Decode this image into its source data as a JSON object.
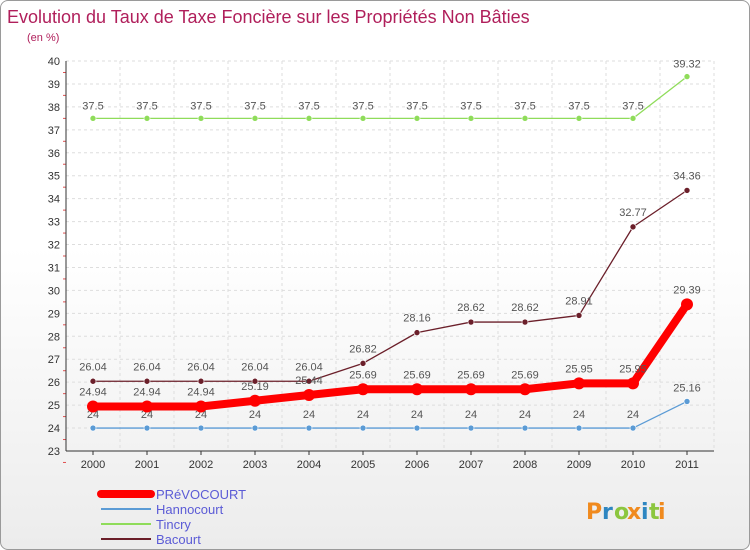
{
  "chart_data": {
    "type": "line",
    "title": "Evolution du Taux de Taxe Foncière sur les Propriétés Non Bâties",
    "subtitle": "(en %)",
    "xlabel": "",
    "ylabel": "",
    "categories": [
      "2000",
      "2001",
      "2002",
      "2003",
      "2004",
      "2005",
      "2006",
      "2007",
      "2008",
      "2009",
      "2010",
      "2011"
    ],
    "ylim": [
      23,
      40
    ],
    "yticks": [
      23,
      24,
      25,
      26,
      27,
      28,
      29,
      30,
      31,
      32,
      33,
      34,
      35,
      36,
      37,
      38,
      39,
      40
    ],
    "series": [
      {
        "name": "PRéVOCOURT",
        "color": "#ff0000",
        "values": [
          24.94,
          24.94,
          24.94,
          25.19,
          25.44,
          25.69,
          25.69,
          25.69,
          25.69,
          25.95,
          25.95,
          29.39
        ],
        "labels": [
          "24.94",
          "24.94",
          "24.94",
          "25.19",
          "25.44",
          "25.69",
          "25.69",
          "25.69",
          "25.69",
          "25.95",
          "25.95",
          "29.39"
        ]
      },
      {
        "name": "Hannocourt",
        "color": "#5b9bd5",
        "values": [
          24,
          24,
          24,
          24,
          24,
          24,
          24,
          24,
          24,
          24,
          24,
          25.16
        ],
        "labels": [
          "24",
          "24",
          "24",
          "24",
          "24",
          "24",
          "24",
          "24",
          "24",
          "24",
          "24",
          "25.16"
        ]
      },
      {
        "name": "Tincry",
        "color": "#8fdc5a",
        "values": [
          37.5,
          37.5,
          37.5,
          37.5,
          37.5,
          37.5,
          37.5,
          37.5,
          37.5,
          37.5,
          37.5,
          39.32
        ],
        "labels": [
          "37.5",
          "37.5",
          "37.5",
          "37.5",
          "37.5",
          "37.5",
          "37.5",
          "37.5",
          "37.5",
          "37.5",
          "37.5",
          "39.32"
        ]
      },
      {
        "name": "Bacourt",
        "color": "#6b1f2a",
        "values": [
          26.04,
          26.04,
          26.04,
          26.04,
          26.04,
          26.82,
          28.16,
          28.62,
          28.62,
          28.91,
          32.77,
          34.36
        ],
        "labels": [
          "26.04",
          "26.04",
          "26.04",
          "26.04",
          "26.04",
          "26.82",
          "28.16",
          "28.62",
          "28.62",
          "28.91",
          "32.77",
          "34.36"
        ]
      }
    ],
    "legend_position": "bottom-left"
  },
  "logo": {
    "text": "Proxiti",
    "colors": [
      "#f08a1e",
      "#2e86c1",
      "#8cc63f",
      "#f08a1e",
      "#2e86c1",
      "#8cc63f",
      "#f08a1e"
    ]
  }
}
